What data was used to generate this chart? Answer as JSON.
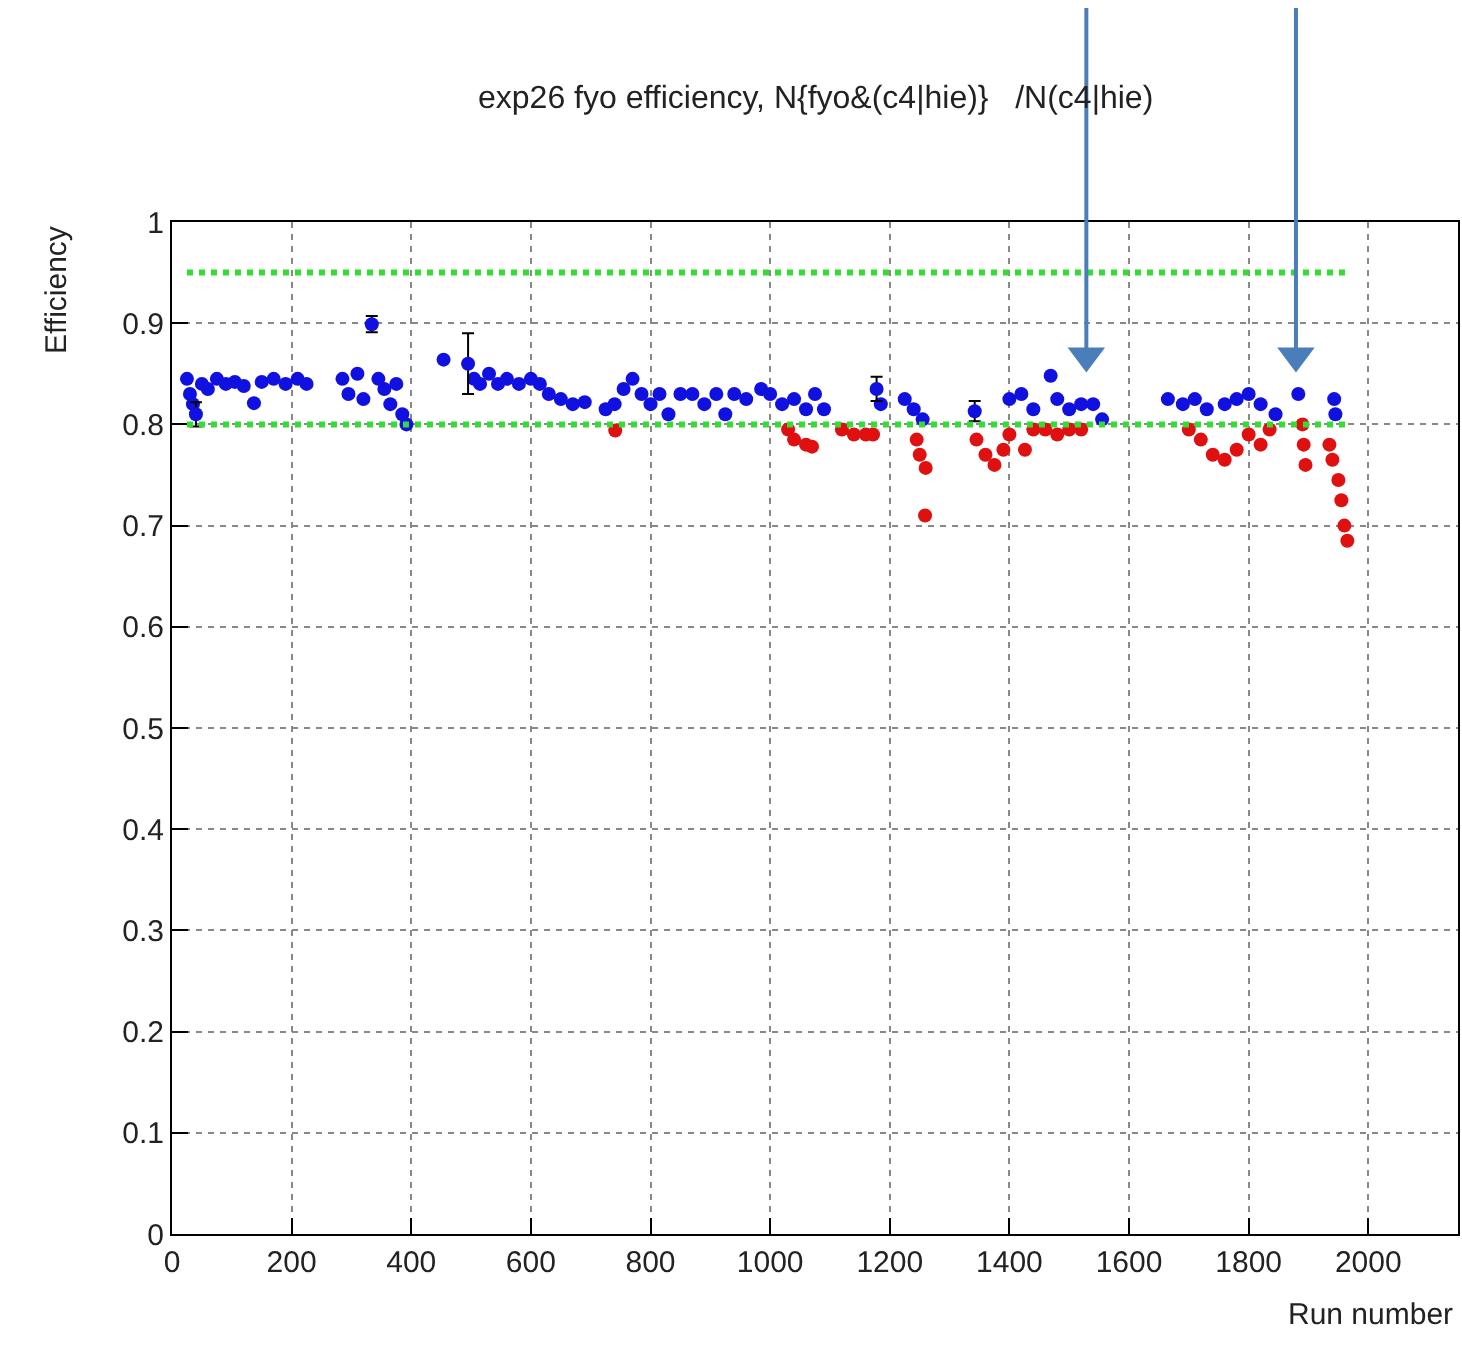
{
  "chart_data": {
    "type": "scatter",
    "title": "exp26 fyo efficiency, N{fyo&(c4|hie)}   /N(c4|hie)",
    "xlabel": "Run number",
    "ylabel": "Efficiency",
    "xlim": [
      0,
      2150
    ],
    "ylim": [
      0,
      1
    ],
    "xticks": [
      0,
      200,
      400,
      600,
      800,
      1000,
      1200,
      1400,
      1600,
      1800,
      2000
    ],
    "yticks": [
      0,
      {
        "value": 0.1,
        "label": "0.1"
      },
      {
        "value": 0.2,
        "label": "0.2"
      },
      {
        "value": 0.3,
        "label": "0.3"
      },
      {
        "value": 0.4,
        "label": "0.4"
      },
      {
        "value": 0.5,
        "label": "0.5"
      },
      {
        "value": 0.6,
        "label": "0.6"
      },
      {
        "value": 0.7,
        "label": "0.7"
      },
      {
        "value": 0.8,
        "label": "0.8"
      },
      {
        "value": 0.9,
        "label": "0.9"
      },
      1
    ],
    "grid": true,
    "marker": "circle",
    "series": [
      {
        "color": "#1010e0",
        "x": [
          25,
          30,
          35,
          50,
          60,
          75,
          90,
          105,
          120,
          137,
          150,
          170,
          190,
          210,
          225,
          285,
          295,
          310,
          320,
          345,
          355,
          365,
          375,
          385,
          392,
          454,
          505,
          515,
          530,
          545,
          560,
          580,
          600,
          615,
          630,
          650,
          670,
          690,
          725,
          740,
          755,
          770,
          785,
          800,
          815,
          830,
          850,
          870,
          890,
          910,
          925,
          940,
          960,
          985,
          1000,
          1020,
          1040,
          1060,
          1075,
          1090,
          1185,
          1225,
          1240,
          1255,
          1400,
          1420,
          1440,
          1469,
          1480,
          1500,
          1520,
          1540,
          1555,
          1665,
          1690,
          1710,
          1730,
          1760,
          1780,
          1800,
          1820,
          1845,
          1883,
          1943,
          1945
        ],
        "values": [
          0.845,
          0.83,
          0.82,
          0.84,
          0.835,
          0.845,
          0.84,
          0.842,
          0.838,
          0.821,
          0.842,
          0.845,
          0.84,
          0.845,
          0.84,
          0.845,
          0.83,
          0.85,
          0.825,
          0.845,
          0.835,
          0.82,
          0.84,
          0.81,
          0.8,
          0.864,
          0.845,
          0.84,
          0.85,
          0.84,
          0.845,
          0.84,
          0.845,
          0.84,
          0.83,
          0.825,
          0.82,
          0.822,
          0.815,
          0.82,
          0.835,
          0.845,
          0.83,
          0.82,
          0.83,
          0.81,
          0.83,
          0.83,
          0.82,
          0.83,
          0.81,
          0.83,
          0.825,
          0.835,
          0.83,
          0.82,
          0.825,
          0.815,
          0.83,
          0.815,
          0.82,
          0.825,
          0.815,
          0.805,
          0.825,
          0.83,
          0.815,
          0.848,
          0.825,
          0.815,
          0.82,
          0.82,
          0.805,
          0.825,
          0.82,
          0.825,
          0.815,
          0.82,
          0.825,
          0.83,
          0.82,
          0.81,
          0.83,
          0.825,
          0.81
        ]
      },
      {
        "color": "#1010e0",
        "x": [
          40,
          334,
          495,
          1178,
          1342
        ],
        "values": [
          0.81,
          0.899,
          0.86,
          0.835,
          0.813
        ],
        "errors": [
          0.012,
          0.008,
          0.03,
          0.012,
          0.01
        ]
      },
      {
        "color": "#e01010",
        "x": [
          741,
          1030,
          1040,
          1060,
          1070,
          1120,
          1140,
          1160,
          1172,
          1245,
          1250,
          1260,
          1259,
          1345,
          1360,
          1375,
          1390,
          1400,
          1426,
          1440,
          1460,
          1480,
          1500,
          1520,
          1700,
          1720,
          1740,
          1760,
          1780,
          1800,
          1820,
          1835,
          1890,
          1892,
          1895,
          1935,
          1940,
          1950,
          1955,
          1960,
          1965
        ],
        "values": [
          0.794,
          0.795,
          0.785,
          0.78,
          0.778,
          0.795,
          0.79,
          0.79,
          0.79,
          0.785,
          0.77,
          0.757,
          0.71,
          0.785,
          0.77,
          0.76,
          0.775,
          0.79,
          0.775,
          0.795,
          0.795,
          0.79,
          0.795,
          0.795,
          0.795,
          0.785,
          0.77,
          0.765,
          0.775,
          0.79,
          0.78,
          0.795,
          0.8,
          0.78,
          0.76,
          0.78,
          0.765,
          0.745,
          0.725,
          0.7,
          0.685
        ]
      }
    ],
    "ref_lines": [
      {
        "axis": "y",
        "value": 0.95,
        "color": "#33dd33",
        "line_style": "dotted"
      },
      {
        "axis": "y",
        "value": 0.8,
        "color": "#33dd33",
        "line_style": "dotted"
      }
    ]
  }
}
